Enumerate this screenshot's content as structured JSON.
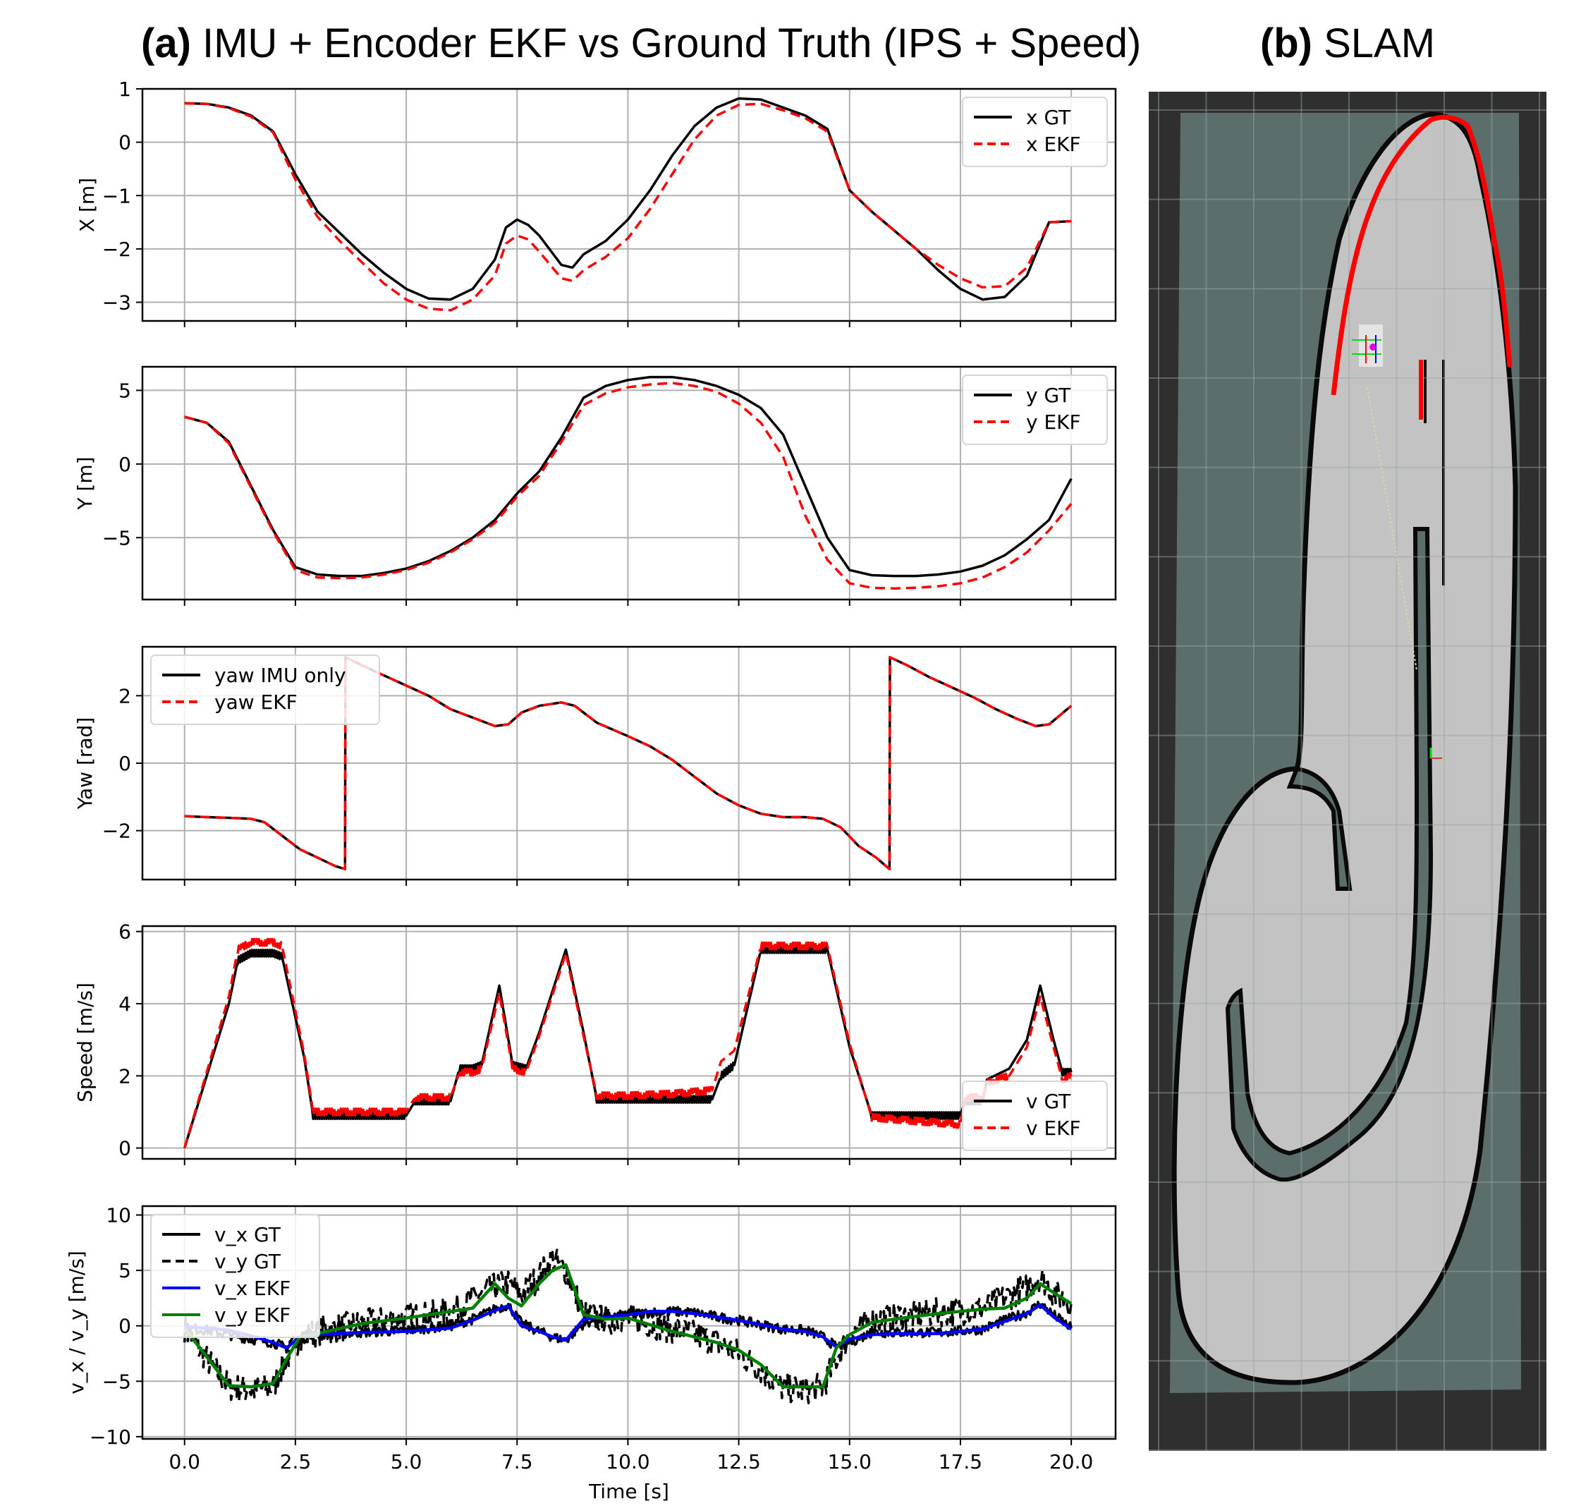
{
  "figure": {
    "title_a_label": "(a)",
    "title_a_text": " IMU + Encoder EKF vs Ground Truth (IPS + Speed)",
    "title_b_label": "(b)",
    "title_b_text": " SLAM"
  },
  "colors": {
    "gt": "#000000",
    "ekf": "#ff0000",
    "vx_ekf": "#0000ff",
    "vy_ekf": "#008000",
    "grid": "#b0b0b0",
    "slam_bg": "#2f2f2f",
    "slam_unknown": "#5c6e6b",
    "slam_free": "#c3c3c3",
    "slam_wall": "#0a0a0a",
    "slam_path": "#ff0000"
  },
  "chart_data": [
    {
      "type": "line",
      "id": "x",
      "ylabel": "X [m]",
      "xlabel": "",
      "ylim": [
        -3.35,
        1.0
      ],
      "yticks": [
        1,
        0,
        -1,
        -2,
        -3
      ],
      "ytick_labels": [
        "1",
        "0",
        "−1",
        "−2",
        "−3"
      ],
      "legend_position": "upper right",
      "x": [
        0,
        0.5,
        1,
        1.5,
        2,
        2.5,
        3,
        3.5,
        4,
        4.5,
        5,
        5.5,
        6,
        6.5,
        7,
        7.25,
        7.5,
        7.75,
        8,
        8.5,
        8.75,
        9,
        9.5,
        10,
        10.5,
        11,
        11.5,
        12,
        12.5,
        13,
        13.5,
        14,
        14.5,
        15,
        15.5,
        16,
        16.5,
        17,
        17.5,
        18,
        18.5,
        19,
        19.5,
        20
      ],
      "series": [
        {
          "name": "x GT",
          "style": "solid",
          "color": "#000000",
          "values": [
            0.73,
            0.72,
            0.65,
            0.5,
            0.2,
            -0.6,
            -1.3,
            -1.7,
            -2.1,
            -2.45,
            -2.75,
            -2.93,
            -2.95,
            -2.75,
            -2.2,
            -1.6,
            -1.45,
            -1.55,
            -1.75,
            -2.3,
            -2.35,
            -2.1,
            -1.85,
            -1.45,
            -0.9,
            -0.25,
            0.3,
            0.65,
            0.82,
            0.8,
            0.65,
            0.5,
            0.25,
            -0.9,
            -1.3,
            -1.65,
            -2.0,
            -2.4,
            -2.75,
            -2.95,
            -2.9,
            -2.5,
            -1.5,
            -1.48
          ]
        },
        {
          "name": "x EKF",
          "style": "dashed",
          "color": "#ff0000",
          "values": [
            0.73,
            0.72,
            0.64,
            0.48,
            0.18,
            -0.7,
            -1.4,
            -1.85,
            -2.25,
            -2.65,
            -2.95,
            -3.12,
            -3.15,
            -2.95,
            -2.5,
            -1.9,
            -1.75,
            -1.82,
            -2.05,
            -2.55,
            -2.6,
            -2.4,
            -2.15,
            -1.8,
            -1.25,
            -0.6,
            0.05,
            0.5,
            0.7,
            0.72,
            0.6,
            0.45,
            0.2,
            -0.9,
            -1.3,
            -1.65,
            -2.0,
            -2.3,
            -2.55,
            -2.72,
            -2.7,
            -2.35,
            -1.5,
            -1.48
          ]
        }
      ]
    },
    {
      "type": "line",
      "id": "y",
      "ylabel": "Y [m]",
      "xlabel": "",
      "ylim": [
        -9.2,
        6.6
      ],
      "yticks": [
        5,
        0,
        -5
      ],
      "ytick_labels": [
        "5",
        "0",
        "−5"
      ],
      "legend_position": "upper right",
      "x": [
        0,
        0.5,
        1,
        1.5,
        2,
        2.5,
        3,
        3.5,
        4,
        4.5,
        5,
        5.5,
        6,
        6.5,
        7,
        7.5,
        8,
        8.5,
        9,
        9.5,
        10,
        10.5,
        11,
        11.5,
        12,
        12.5,
        13,
        13.5,
        14,
        14.5,
        15,
        15.5,
        16,
        16.5,
        17,
        17.5,
        18,
        18.5,
        19,
        19.5,
        20
      ],
      "series": [
        {
          "name": "y GT",
          "style": "solid",
          "color": "#000000",
          "values": [
            3.2,
            2.8,
            1.5,
            -1.5,
            -4.5,
            -7.0,
            -7.5,
            -7.6,
            -7.6,
            -7.4,
            -7.1,
            -6.6,
            -5.9,
            -5.0,
            -3.8,
            -2.0,
            -0.5,
            1.8,
            4.5,
            5.3,
            5.7,
            5.9,
            5.9,
            5.7,
            5.3,
            4.7,
            3.8,
            2.0,
            -1.5,
            -5.0,
            -7.2,
            -7.55,
            -7.6,
            -7.6,
            -7.5,
            -7.3,
            -6.9,
            -6.2,
            -5.1,
            -3.8,
            -1.0
          ]
        },
        {
          "name": "y EKF",
          "style": "dashed",
          "color": "#ff0000",
          "values": [
            3.2,
            2.8,
            1.4,
            -1.6,
            -4.6,
            -7.2,
            -7.7,
            -7.75,
            -7.7,
            -7.5,
            -7.2,
            -6.7,
            -6.0,
            -5.1,
            -4.0,
            -2.2,
            -0.8,
            1.5,
            4.0,
            4.8,
            5.2,
            5.4,
            5.5,
            5.3,
            4.9,
            4.1,
            2.8,
            0.5,
            -3.5,
            -6.5,
            -8.1,
            -8.4,
            -8.45,
            -8.4,
            -8.3,
            -8.1,
            -7.7,
            -7.0,
            -6.0,
            -4.5,
            -2.7
          ]
        }
      ]
    },
    {
      "type": "line",
      "id": "yaw",
      "ylabel": "Yaw [rad]",
      "xlabel": "",
      "ylim": [
        -3.45,
        3.45
      ],
      "yticks": [
        2,
        0,
        -2
      ],
      "ytick_labels": [
        "2",
        "0",
        "−2"
      ],
      "legend_position": "upper left",
      "x": [
        0,
        0.5,
        1,
        1.5,
        1.8,
        2.2,
        2.6,
        3.0,
        3.4,
        3.62,
        3.63,
        4.0,
        4.5,
        5.0,
        5.5,
        6.0,
        6.5,
        7.0,
        7.3,
        7.6,
        8.0,
        8.5,
        8.8,
        9.3,
        10.0,
        10.5,
        11.0,
        11.5,
        12.0,
        12.5,
        13.0,
        13.5,
        14.0,
        14.4,
        14.8,
        15.2,
        15.6,
        15.9,
        15.91,
        16.3,
        16.8,
        17.3,
        17.8,
        18.3,
        18.8,
        19.2,
        19.5,
        20.0
      ],
      "series": [
        {
          "name": "yaw IMU only",
          "style": "solid",
          "color": "#000000",
          "values": [
            -1.57,
            -1.6,
            -1.62,
            -1.65,
            -1.75,
            -2.15,
            -2.55,
            -2.8,
            -3.05,
            -3.14,
            3.14,
            2.9,
            2.6,
            2.3,
            2.0,
            1.6,
            1.35,
            1.1,
            1.15,
            1.5,
            1.7,
            1.8,
            1.7,
            1.2,
            0.8,
            0.5,
            0.1,
            -0.4,
            -0.9,
            -1.25,
            -1.5,
            -1.6,
            -1.6,
            -1.65,
            -1.9,
            -2.45,
            -2.8,
            -3.14,
            3.14,
            2.9,
            2.55,
            2.25,
            1.95,
            1.6,
            1.3,
            1.1,
            1.15,
            1.7
          ]
        },
        {
          "name": "yaw EKF",
          "style": "dashed",
          "color": "#ff0000",
          "values": [
            -1.57,
            -1.6,
            -1.62,
            -1.65,
            -1.75,
            -2.15,
            -2.55,
            -2.8,
            -3.05,
            -3.14,
            3.14,
            2.9,
            2.6,
            2.3,
            2.0,
            1.6,
            1.35,
            1.1,
            1.15,
            1.5,
            1.7,
            1.8,
            1.7,
            1.2,
            0.8,
            0.5,
            0.1,
            -0.4,
            -0.9,
            -1.25,
            -1.5,
            -1.6,
            -1.6,
            -1.65,
            -1.9,
            -2.45,
            -2.8,
            -3.14,
            3.14,
            2.9,
            2.55,
            2.25,
            1.95,
            1.6,
            1.3,
            1.1,
            1.15,
            1.7
          ]
        }
      ]
    },
    {
      "type": "line",
      "id": "speed",
      "ylabel": "Speed [m/s]",
      "xlabel": "",
      "ylim": [
        -0.3,
        6.15
      ],
      "yticks": [
        6,
        4,
        2,
        0
      ],
      "ytick_labels": [
        "6",
        "4",
        "2",
        "0"
      ],
      "legend_position": "lower right",
      "x": [
        0,
        0.5,
        1,
        1.2,
        1.5,
        2.0,
        2.2,
        2.7,
        2.9,
        3.5,
        4.0,
        4.5,
        5.0,
        5.2,
        5.7,
        6.0,
        6.2,
        6.5,
        6.7,
        7.1,
        7.4,
        7.7,
        8.0,
        8.6,
        9.0,
        9.3,
        10,
        11,
        11.9,
        12.1,
        12.4,
        13.0,
        13.5,
        14.0,
        14.5,
        15.0,
        15.5,
        16,
        17,
        17.5,
        17.6,
        18.0,
        18.1,
        18.6,
        19.0,
        19.3,
        19.6,
        19.8,
        20.0
      ],
      "series": [
        {
          "name": "v GT",
          "style": "solid",
          "color": "#000000",
          "values": [
            0.0,
            2.0,
            4.0,
            5.2,
            5.4,
            5.4,
            5.3,
            2.5,
            0.9,
            0.9,
            0.9,
            0.9,
            0.9,
            1.3,
            1.3,
            1.3,
            2.2,
            2.2,
            2.3,
            4.5,
            2.3,
            2.2,
            3.2,
            5.5,
            3.2,
            1.35,
            1.35,
            1.35,
            1.35,
            2.0,
            2.3,
            5.5,
            5.5,
            5.5,
            5.5,
            2.8,
            0.9,
            0.9,
            0.9,
            0.9,
            1.3,
            1.3,
            1.9,
            2.2,
            3.0,
            4.5,
            3.0,
            2.1,
            2.1
          ]
        },
        {
          "name": "v EKF",
          "style": "dashed",
          "color": "#ff0000",
          "values": [
            0.0,
            2.1,
            4.2,
            5.5,
            5.7,
            5.7,
            5.6,
            2.6,
            1.0,
            1.0,
            1.0,
            1.0,
            1.0,
            1.4,
            1.4,
            1.4,
            2.1,
            2.1,
            2.2,
            4.3,
            2.2,
            2.1,
            3.1,
            5.4,
            3.1,
            1.45,
            1.45,
            1.5,
            1.6,
            2.4,
            2.7,
            5.6,
            5.6,
            5.6,
            5.6,
            2.9,
            0.85,
            0.8,
            0.7,
            0.65,
            1.4,
            1.4,
            1.8,
            2.0,
            2.8,
            4.2,
            2.8,
            1.9,
            2.0
          ]
        }
      ]
    },
    {
      "type": "line",
      "id": "vxvy",
      "ylabel": "v_x / v_y [m/s]",
      "xlabel": "Time [s]",
      "ylim": [
        -10.2,
        10.8
      ],
      "yticks": [
        10,
        5,
        0,
        -5,
        -10
      ],
      "ytick_labels": [
        "10",
        "5",
        "0",
        "−5",
        "−10"
      ],
      "legend_position": "upper left",
      "x": [
        0,
        0.5,
        1,
        1.5,
        2,
        2.3,
        2.6,
        3,
        4,
        5,
        6,
        6.5,
        7,
        7.3,
        7.6,
        8,
        8.3,
        8.6,
        9.0,
        9.5,
        10,
        10.5,
        11,
        11.5,
        12,
        12.5,
        13,
        13.5,
        14,
        14.4,
        14.7,
        15,
        15.5,
        16,
        17,
        18,
        18.5,
        19,
        19.3,
        19.6,
        20
      ],
      "series": [
        {
          "name": "v_x GT",
          "style": "solid-noisy",
          "color": "#000000",
          "values": [
            -0.2,
            -0.4,
            -0.8,
            -1.2,
            -1.5,
            -2.0,
            -1.2,
            -0.8,
            -0.6,
            -0.4,
            0.0,
            0.6,
            1.5,
            1.9,
            0.2,
            -0.5,
            -1.0,
            -1.3,
            0.2,
            0.8,
            1.0,
            1.2,
            1.3,
            1.2,
            0.8,
            0.5,
            0.1,
            -0.3,
            -0.4,
            -1.0,
            -1.9,
            -1.5,
            -0.6,
            -0.6,
            -0.6,
            -0.3,
            0.5,
            1.2,
            2.0,
            1.0,
            -0.2
          ]
        },
        {
          "name": "v_y GT",
          "style": "dashed-noisy",
          "color": "#000000",
          "values": [
            -0.2,
            -3.0,
            -5.5,
            -5.8,
            -5.5,
            -3.0,
            -1.0,
            -0.5,
            0.2,
            0.7,
            1.2,
            2.5,
            3.5,
            3.8,
            2.8,
            4.5,
            6.0,
            5.0,
            1.0,
            0.5,
            0.6,
            0.2,
            -0.3,
            -0.8,
            -1.5,
            -2.5,
            -4.0,
            -5.6,
            -5.8,
            -5.5,
            -3.0,
            -0.8,
            0.5,
            0.8,
            1.2,
            1.5,
            2.5,
            3.5,
            4.5,
            3.0,
            2.0
          ]
        },
        {
          "name": "v_x EKF",
          "style": "solid",
          "color": "#0000ff",
          "values": [
            -0.1,
            -0.2,
            -0.4,
            -0.9,
            -1.5,
            -2.0,
            -1.0,
            -0.8,
            -0.6,
            -0.5,
            -0.2,
            0.5,
            1.4,
            1.8,
            0.0,
            -0.5,
            -1.0,
            -1.3,
            0.6,
            0.8,
            1.0,
            1.3,
            1.3,
            1.1,
            0.8,
            0.5,
            0.1,
            -0.3,
            -0.5,
            -1.0,
            -1.9,
            -1.2,
            -0.8,
            -0.7,
            -0.7,
            -0.3,
            0.4,
            1.1,
            1.9,
            0.8,
            -0.3
          ]
        },
        {
          "name": "v_y EKF",
          "style": "solid",
          "color": "#008000",
          "values": [
            -0.2,
            -2.8,
            -5.4,
            -5.5,
            -5.2,
            -3.0,
            -1.0,
            -0.7,
            0.2,
            0.7,
            1.3,
            1.6,
            3.8,
            2.5,
            1.8,
            3.8,
            5.0,
            5.5,
            1.0,
            0.6,
            0.7,
            0.1,
            -0.5,
            -1.0,
            -1.5,
            -2.2,
            -3.5,
            -5.5,
            -5.5,
            -5.5,
            -2.0,
            -0.8,
            0.3,
            0.6,
            1.1,
            1.5,
            1.6,
            2.5,
            3.8,
            3.0,
            2.0
          ]
        }
      ]
    }
  ],
  "xaxis": {
    "label": "Time [s]",
    "xlim": [
      -0.95,
      21.0
    ],
    "ticks": [
      0,
      2.5,
      5,
      7.5,
      10,
      12.5,
      15,
      17.5,
      20
    ],
    "tick_labels": [
      "0.0",
      "2.5",
      "5.0",
      "7.5",
      "10.0",
      "12.5",
      "15.0",
      "17.5",
      "20.0"
    ]
  },
  "slam": {
    "description": "occupancy grid map with laser-scan trace",
    "grid_columns": 8,
    "grid_rows": 15
  }
}
